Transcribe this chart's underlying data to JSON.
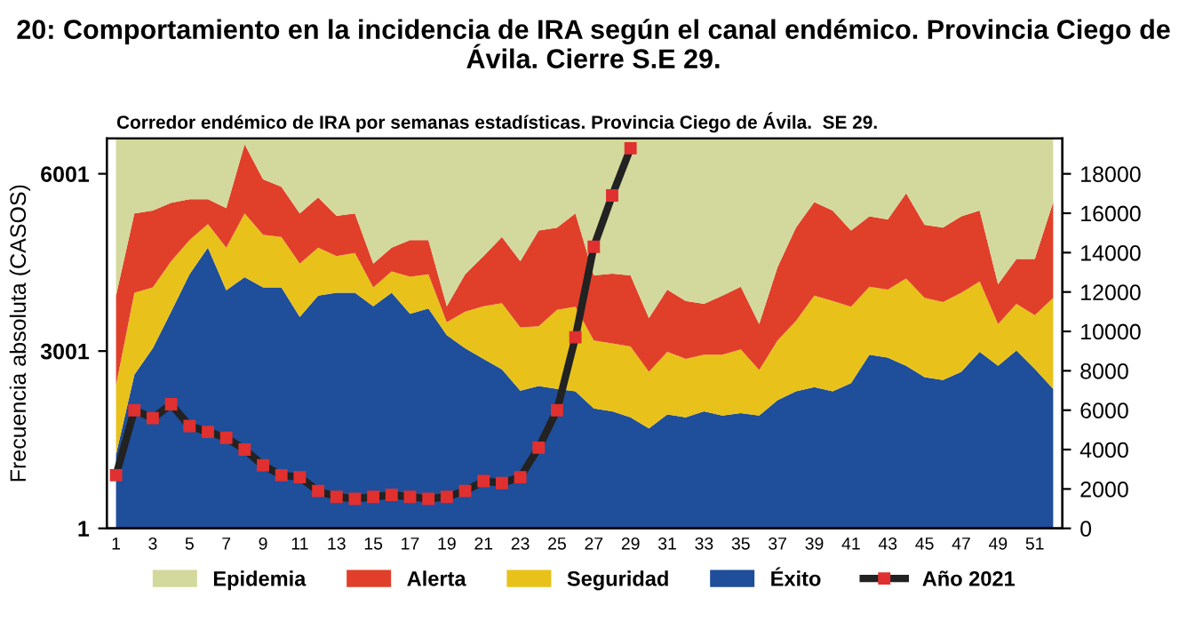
{
  "chart_data": {
    "type": "area",
    "stacked": true,
    "title": "20: Comportamiento en la incidencia de IRA según el canal endémico. Provincia Ciego de Ávila. Cierre S.E 29.",
    "subtitle": "Corredor endémico de IRA por semanas estadísticas. Provincia Ciego de Ávila.  SE 29.",
    "ylabel": "Frecuencia absoluta (CASOS)",
    "categories": [
      "1",
      null,
      "3",
      null,
      "5",
      null,
      "7",
      null,
      "9",
      null,
      "11",
      null,
      "13",
      null,
      "15",
      null,
      "17",
      null,
      "19",
      null,
      "21",
      null,
      "23",
      null,
      "25",
      null,
      "27",
      null,
      "29",
      null,
      "31",
      null,
      "33",
      null,
      "35",
      null,
      "37",
      null,
      "39",
      null,
      "41",
      null,
      "43",
      null,
      "45",
      null,
      "47",
      null,
      "49",
      null,
      "51",
      null
    ],
    "series": [
      {
        "name": "Éxito",
        "color": "#1f4e9a",
        "values": [
          1250,
          2600,
          3050,
          3670,
          4300,
          4750,
          4030,
          4250,
          4080,
          4080,
          3580,
          3940,
          3990,
          3990,
          3760,
          3990,
          3630,
          3720,
          3270,
          3050,
          2870,
          2690,
          2330,
          2410,
          2360,
          2320,
          2030,
          1980,
          1880,
          1690,
          1930,
          1880,
          1980,
          1910,
          1950,
          1910,
          2170,
          2320,
          2390,
          2320,
          2460,
          2940,
          2890,
          2750,
          2560,
          2510,
          2650,
          2990,
          2750,
          3010,
          2700,
          2360
        ]
      },
      {
        "name": "Seguridad",
        "color": "#e8c21a",
        "values": [
          1170,
          1390,
          1030,
          850,
          580,
          400,
          720,
          1080,
          890,
          850,
          900,
          810,
          620,
          670,
          320,
          360,
          630,
          580,
          220,
          620,
          890,
          1120,
          1070,
          1010,
          1340,
          1430,
          1150,
          1150,
          1200,
          960,
          1060,
          990,
          960,
          1030,
          1080,
          770,
          1010,
          1190,
          1550,
          1530,
          1290,
          1150,
          1150,
          1480,
          1340,
          1320,
          1340,
          1190,
          710,
          790,
          910,
          1540
        ]
      },
      {
        "name": "Alerta",
        "color": "#e0402a",
        "values": [
          1520,
          1340,
          1300,
          990,
          690,
          420,
          670,
          1170,
          940,
          850,
          850,
          850,
          680,
          670,
          400,
          400,
          620,
          580,
          270,
          630,
          850,
          1120,
          1120,
          1620,
          1390,
          1580,
          1100,
          1180,
          1200,
          910,
          1050,
          980,
          860,
          1000,
          1060,
          780,
          1240,
          1580,
          1580,
          1530,
          1290,
          1190,
          1190,
          1440,
          1240,
          1260,
          1290,
          1200,
          670,
          760,
          950,
          1620
        ]
      },
      {
        "name": "Epidemia",
        "color": "#d3d99c",
        "values": [
          2660,
          1270,
          1220,
          1090,
          1030,
          1030,
          1180,
          100,
          690,
          820,
          1270,
          1000,
          1310,
          1270,
          2120,
          1850,
          1720,
          1720,
          2840,
          2300,
          1990,
          1670,
          2080,
          1560,
          1510,
          1270,
          2320,
          2290,
          2320,
          3040,
          2560,
          2750,
          2800,
          2660,
          2510,
          3140,
          2180,
          1510,
          1080,
          1220,
          1560,
          1320,
          1370,
          930,
          1460,
          1510,
          1320,
          1220,
          2470,
          2040,
          2040,
          1080
        ]
      },
      {
        "name": "Año 2021",
        "type": "line",
        "axis": "y2",
        "color": "#e03030",
        "marker": "square",
        "values": [
          2700,
          6000,
          5600,
          6300,
          5200,
          4900,
          4600,
          4000,
          3200,
          2700,
          2600,
          1900,
          1600,
          1500,
          1600,
          1700,
          1600,
          1500,
          1600,
          1900,
          2400,
          2300,
          2600,
          4100,
          6000,
          9700,
          14300,
          16900,
          19300,
          null,
          null,
          null,
          null,
          null,
          null,
          null,
          null,
          null,
          null,
          null,
          null,
          null,
          null,
          null,
          null,
          null,
          null,
          null,
          null,
          null,
          null,
          null
        ]
      }
    ],
    "ylim": [
      1,
      6600
    ],
    "yticks": [
      1,
      3001,
      6001
    ],
    "y2lim": [
      0,
      19800
    ],
    "y2ticks": [
      0,
      2000,
      4000,
      6000,
      8000,
      10000,
      12000,
      14000,
      16000,
      18000
    ],
    "grid": false,
    "legend": "bottom"
  }
}
